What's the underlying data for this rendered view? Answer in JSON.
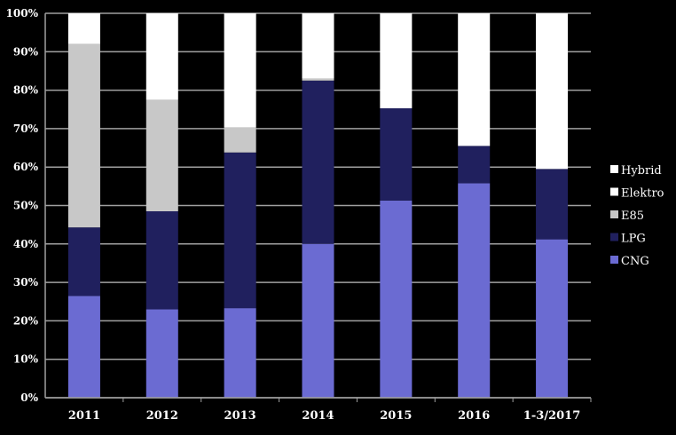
{
  "chart_data": {
    "type": "bar",
    "stacked": true,
    "percent_stacked": true,
    "categories": [
      "2011",
      "2012",
      "2013",
      "2014",
      "2015",
      "2016",
      "1-3/2017"
    ],
    "ylim": [
      0,
      100
    ],
    "yticks": [
      "0%",
      "10%",
      "20%",
      "30%",
      "40%",
      "50%",
      "60%",
      "70%",
      "80%",
      "90%",
      "100%"
    ],
    "grid": true,
    "legend_position": "right",
    "series": [
      {
        "name": "CNG",
        "color": "#6b6bd2",
        "values": [
          26.5,
          23,
          23.3,
          40,
          51.3,
          55.8,
          41.2
        ]
      },
      {
        "name": "LPG",
        "color": "#20205e",
        "values": [
          17.8,
          25.5,
          40.5,
          42.5,
          24,
          9.7,
          18.3
        ]
      },
      {
        "name": "E85",
        "color": "#c8c8c8",
        "values": [
          47.7,
          29,
          6.5,
          0.5,
          0,
          0,
          0
        ]
      },
      {
        "name": "Elektro",
        "color": "#ffffff",
        "values": [
          0,
          0,
          0,
          0,
          0,
          0,
          0
        ]
      },
      {
        "name": "Hybrid",
        "color": "#ffffff",
        "values": [
          8,
          22.5,
          29.7,
          17,
          24.7,
          34.5,
          40.5
        ]
      }
    ]
  }
}
